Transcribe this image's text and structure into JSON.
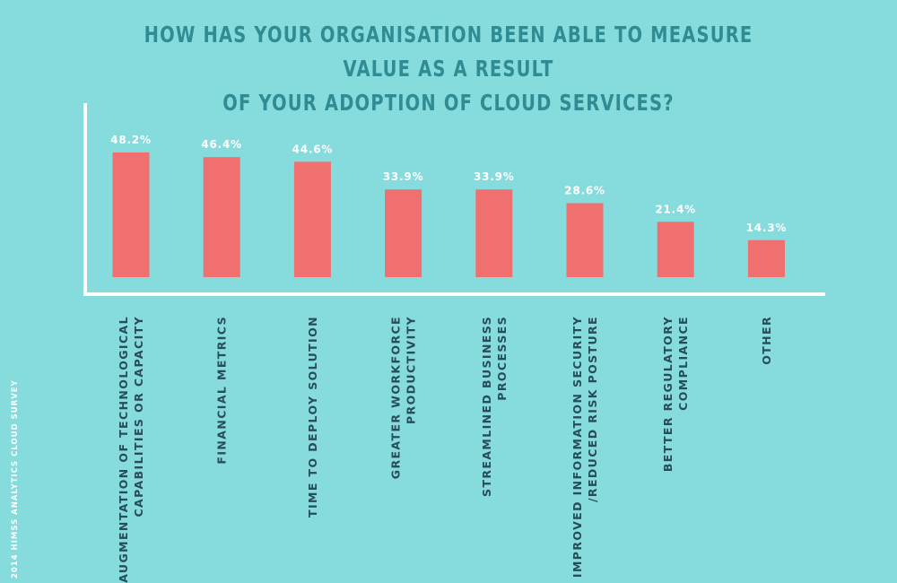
{
  "title_lines": [
    "HOW HAS YOUR ORGANISATION BEEN ABLE TO MEASURE VALUE AS A RESULT",
    "OF YOUR ADOPTION OF CLOUD SERVICES?"
  ],
  "source": "2014 HIMSS ANALYTICS CLOUD SURVEY",
  "colors": {
    "background": "#86dbdd",
    "bar": "#f07070",
    "title": "#2f8c92",
    "axis": "#ffffff",
    "category_text": "#264d58"
  },
  "chart_data": {
    "type": "bar",
    "title": "HOW HAS YOUR ORGANISATION BEEN ABLE TO MEASURE VALUE AS A RESULT OF YOUR ADOPTION OF CLOUD SERVICES?",
    "categories": [
      [
        "AUGMENTATION OF TECHNOLOGICAL",
        "CAPABILITIES OR CAPACITY"
      ],
      [
        "FINANCIAL METRICS"
      ],
      [
        "TIME TO DEPLOY SOLUTION"
      ],
      [
        "GREATER WORKFORCE",
        "PRODUCTIVITY"
      ],
      [
        "STREAMLINED BUSINESS",
        "PROCESSES"
      ],
      [
        "IMPROVED INFORMATION SECURITY",
        "/REDUCED RISK POSTURE"
      ],
      [
        "BETTER REGULATORY",
        "COMPLIANCE"
      ],
      [
        "OTHER"
      ]
    ],
    "values": [
      48.2,
      46.4,
      44.6,
      33.9,
      33.9,
      28.6,
      21.4,
      14.3
    ],
    "value_labels": [
      "48.2%",
      "46.4%",
      "44.6%",
      "33.9%",
      "33.9%",
      "28.6%",
      "21.4%",
      "14.3%"
    ],
    "xlabel": "",
    "ylabel": "",
    "grid": false,
    "legend": "none"
  }
}
